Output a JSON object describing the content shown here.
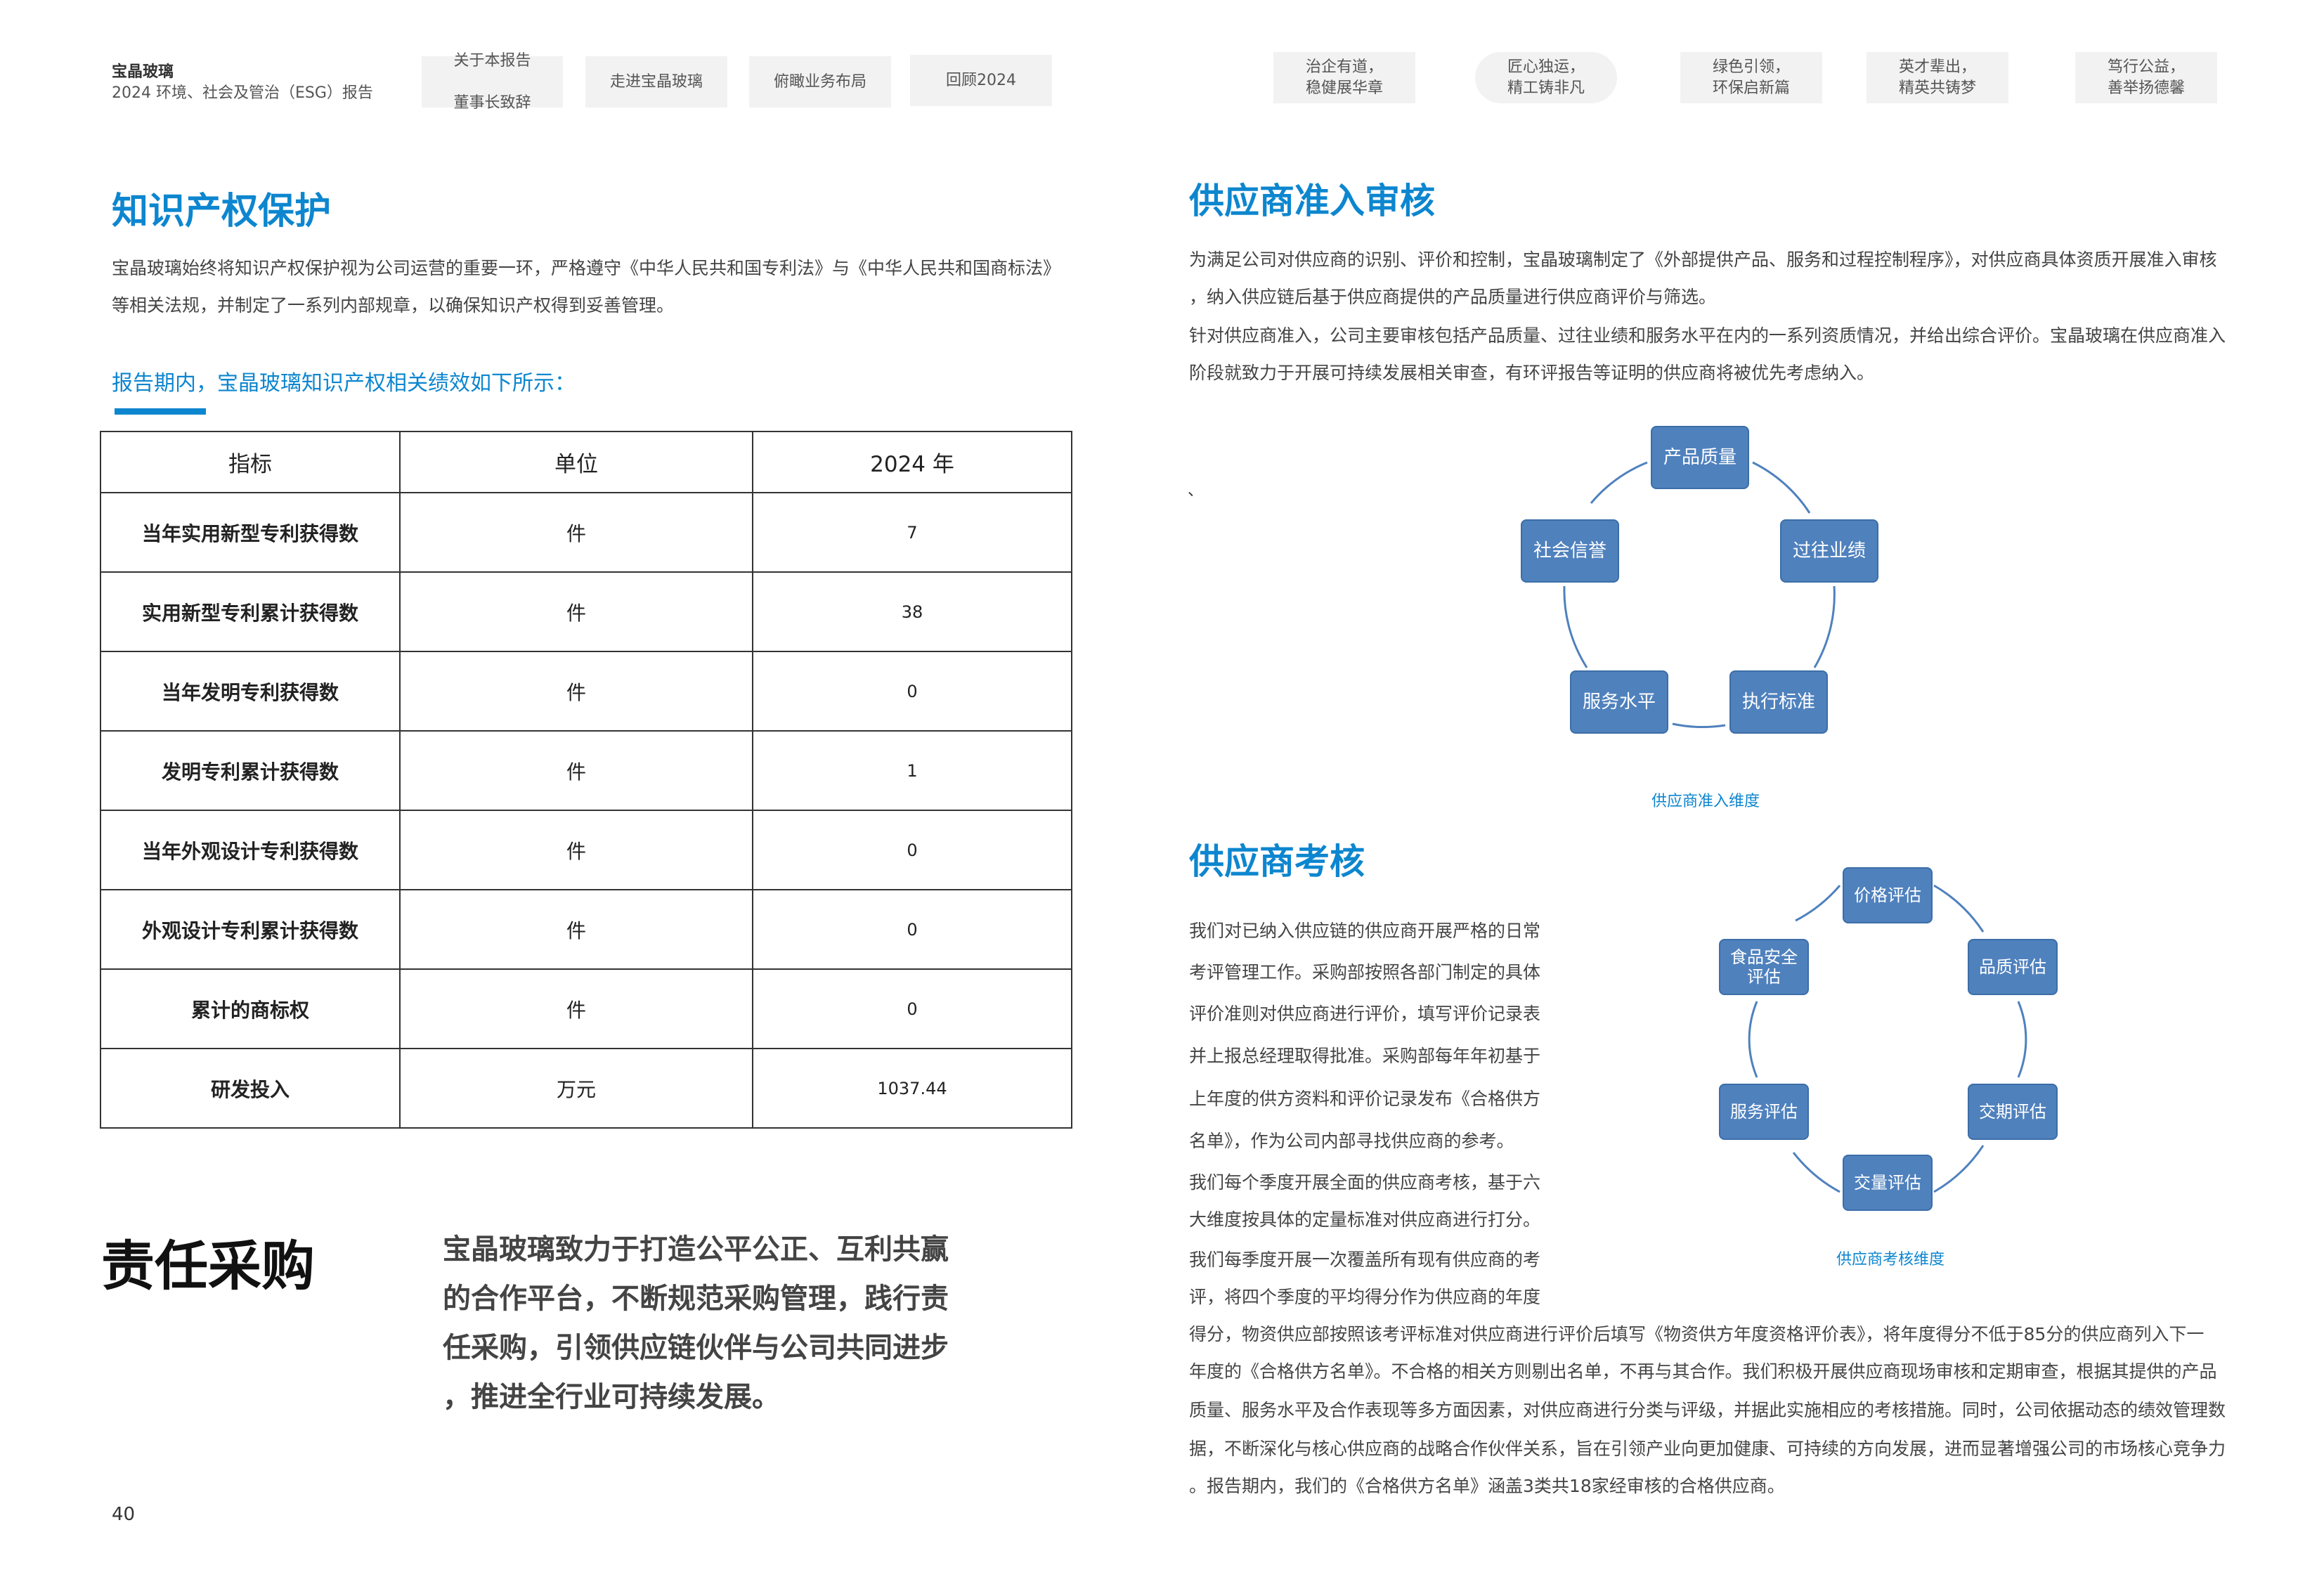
{
  "header": {
    "brand": "宝晶玻璃",
    "report_title": "2024 环境、社会及管治（ESG）报告",
    "nav_left": [
      [
        "关于本报告",
        "董事长致辞"
      ],
      [
        "走进宝晶玻璃"
      ],
      [
        "俯瞰业务布局"
      ],
      [
        "回顾2024"
      ]
    ],
    "nav_right": [
      [
        "治企有道，",
        "稳健展华章"
      ],
      [
        "匠心独运，",
        "精工铸非凡"
      ],
      [
        "绿色引领，",
        "环保启新篇"
      ],
      [
        "英才辈出，",
        "精英共铸梦"
      ],
      [
        "笃行公益，",
        "善举扬德馨"
      ]
    ],
    "active_right_index": 1
  },
  "ip": {
    "title": "知识产权保护",
    "paragraph": [
      "宝晶玻璃始终将知识产权保护视为公司运营的重要一环，严格遵守《中华人民共和国专利法》与《中华人民共和国商标法》",
      "等相关法规，并制定了一系列内部规章，以确保知识产权得到妥善管理。"
    ],
    "subheading": "报告期内，宝晶玻璃知识产权相关绩效如下所示：",
    "table": {
      "headers": [
        "指标",
        "单位",
        "2024 年"
      ],
      "rows": [
        [
          "当年实用新型专利获得数",
          "件",
          "7"
        ],
        [
          "实用新型专利累计获得数",
          "件",
          "38"
        ],
        [
          "当年发明专利获得数",
          "件",
          "0"
        ],
        [
          "发明专利累计获得数",
          "件",
          "1"
        ],
        [
          "当年外观设计专利获得数",
          "件",
          "0"
        ],
        [
          "外观设计专利累计获得数",
          "件",
          "0"
        ],
        [
          "累计的商标权",
          "件",
          "0"
        ],
        [
          "研发投入",
          "万元",
          "1037.44"
        ]
      ]
    }
  },
  "procurement": {
    "title": "责任采购",
    "lead": [
      "宝晶玻璃致力于打造公平公正、互利共赢",
      "的合作平台，不断规范采购管理，践行责",
      "任采购，引领供应链伙伴与公司共同进步",
      "，推进全行业可持续发展。"
    ]
  },
  "page_number": "40",
  "admission": {
    "title": "供应商准入审核",
    "paragraph": [
      "为满足公司对供应商的识别、评价和控制，宝晶玻璃制定了《外部提供产品、服务和过程控制程序》，对供应商具体资质开展准入审核",
      "，纳入供应链后基于供应商提供的产品质量进行供应商评价与筛选。",
      "针对供应商准入，公司主要审核包括产品质量、过往业绩和服务水平在内的一系列资质情况，并给出综合评价。宝晶玻璃在供应商准入",
      "阶段就致力于开展可持续发展相关审查，有环评报告等证明的供应商将被优先考虑纳入。"
    ],
    "stray_mark": "、",
    "diagram": {
      "nodes": [
        "产品质量",
        "过往业绩",
        "执行标准",
        "服务水平",
        "社会信誉"
      ],
      "caption": "供应商准入维度"
    }
  },
  "evaluation": {
    "title": "供应商考核",
    "paragraph_narrow": [
      "我们对已纳入供应链的供应商开展严格的日常",
      "考评管理工作。采购部按照各部门制定的具体",
      "评价准则对供应商进行评价，填写评价记录表",
      "并上报总经理取得批准。采购部每年年初基于",
      "上年度的供方资料和评价记录发布《合格供方",
      "名单》，作为公司内部寻找供应商的参考。",
      "我们每个季度开展全面的供应商考核，基于六",
      "大维度按具体的定量标准对供应商进行打分。",
      "我们每季度开展一次覆盖所有现有供应商的考",
      "评，将四个季度的平均得分作为供应商的年度"
    ],
    "paragraph_wide": [
      "得分，物资供应部按照该考评标准对供应商进行评价后填写《物资供方年度资格评价表》，将年度得分不低于85分的供应商列入下一",
      "年度的《合格供方名单》。不合格的相关方则剔出名单，不再与其合作。我们积极开展供应商现场审核和定期审查，根据其提供的产品",
      "质量、服务水平及合作表现等多方面因素，对供应商进行分类与评级，并据此实施相应的考核措施。同时，公司依据动态的绩效管理数",
      "据，不断深化与核心供应商的战略合作伙伴关系，旨在引领产业向更加健康、可持续的方向发展，进而显著增强公司的市场核心竞争力",
      "。报告期内，我们的《合格供方名单》涵盖3类共18家经审核的合格供应商。"
    ],
    "diagram": {
      "nodes": [
        "价格评估",
        "品质评估",
        "交期评估",
        "交量评估",
        "服务评估",
        "食品安全评估"
      ],
      "node_lines": [
        [
          "价格评估"
        ],
        [
          "品质评估"
        ],
        [
          "交期评估"
        ],
        [
          "交量评估"
        ],
        [
          "服务评估"
        ],
        [
          "食品安全",
          "评估"
        ]
      ],
      "caption": "供应商考核维度"
    }
  },
  "colors": {
    "accent": "#0d86cf",
    "node_fill": "#4f81bd",
    "nav_bg": "#f2f2f2"
  }
}
